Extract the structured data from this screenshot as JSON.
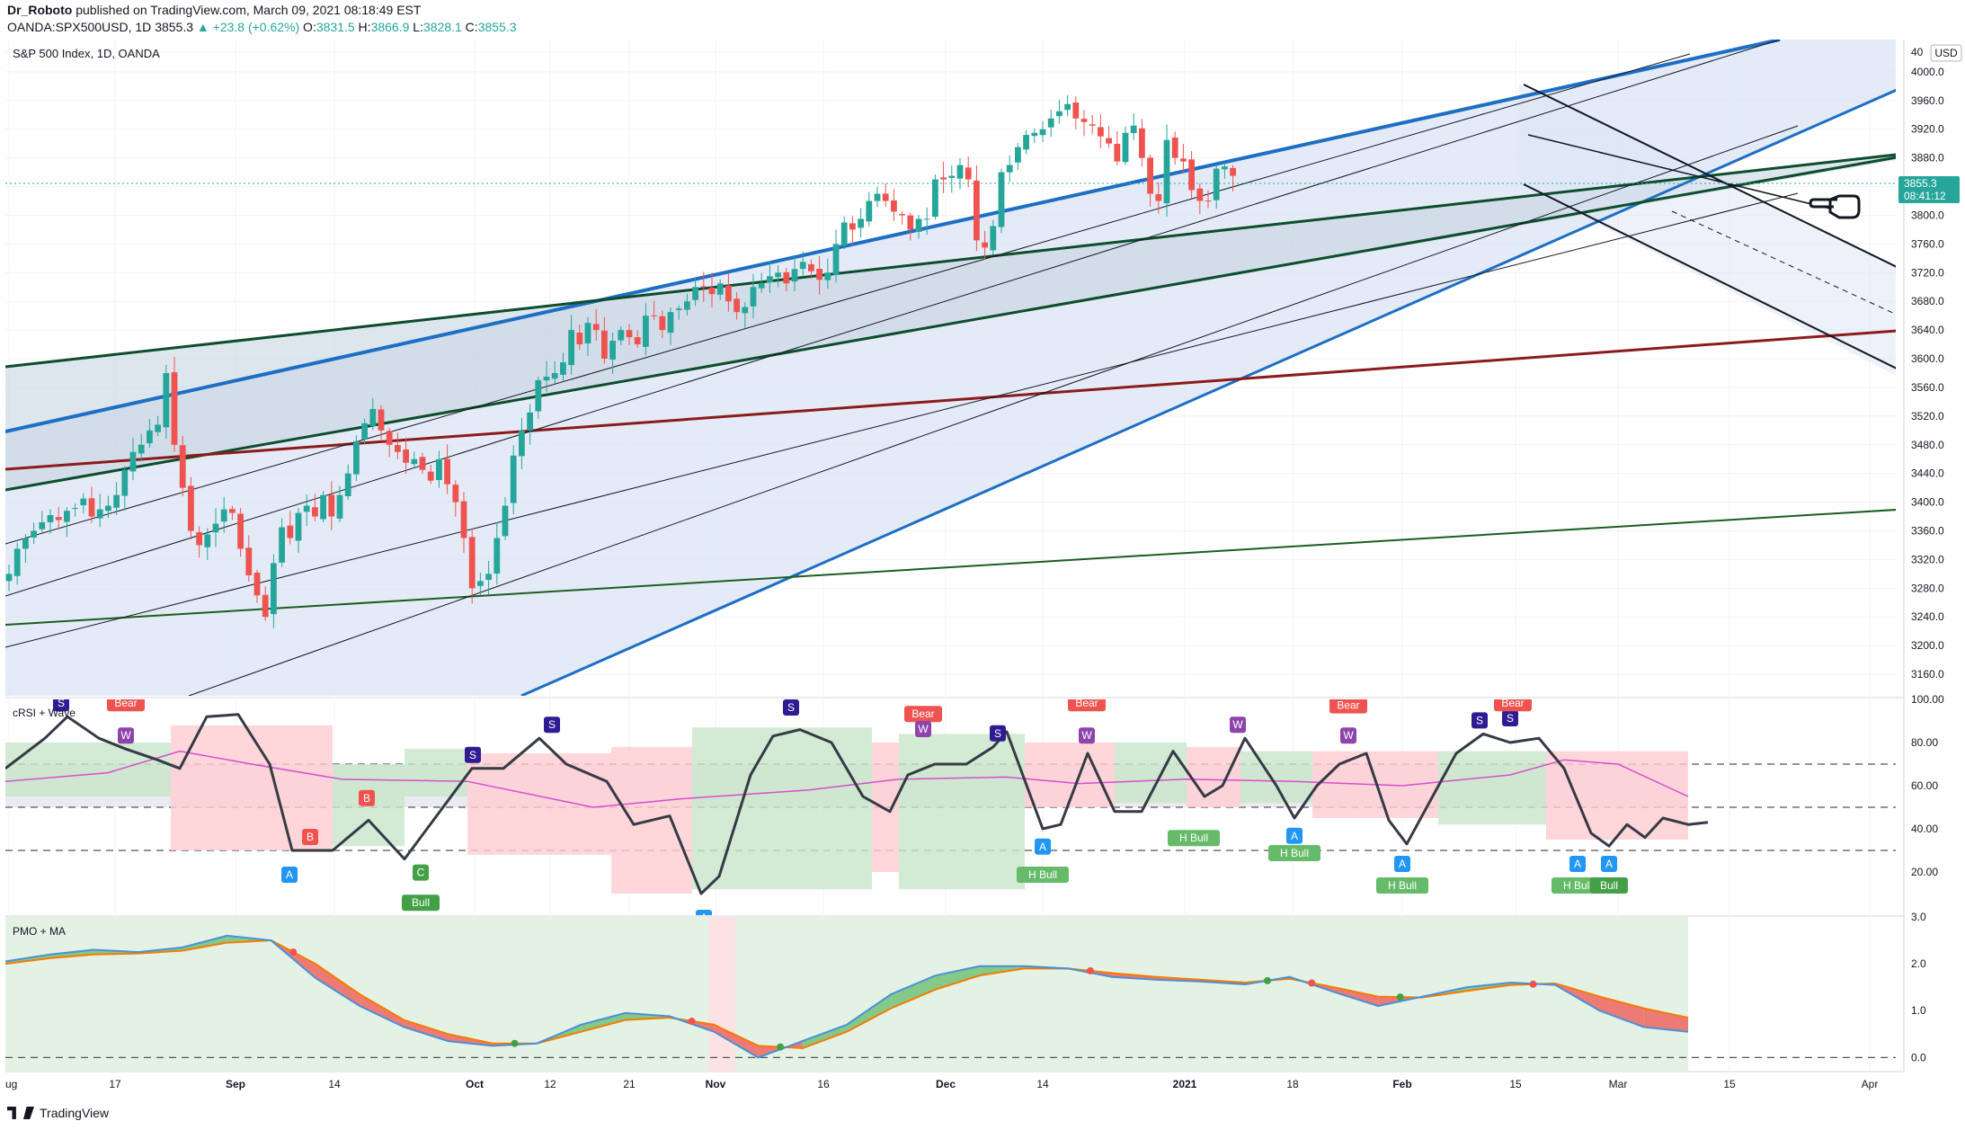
{
  "header": {
    "author": "Dr_Roboto",
    "published_text": "published on TradingView.com, March 09, 2021 08:18:49 EST",
    "symbol": "OANDA:SPX500USD, 1D",
    "price": "3855.3",
    "change": "▲ +23.8 (+0.62%)",
    "ohlc": {
      "O": "3831.5",
      "H": "3866.9",
      "L": "3828.1",
      "C": "3855.3"
    }
  },
  "footer": {
    "brand": "TradingView"
  },
  "chart_data": [
    {
      "type": "candlestick",
      "title": "S&P 500 Index, 1D, OANDA",
      "currency": "USD",
      "ylim": [
        3130,
        4045
      ],
      "y_ticks": [
        "3160.0",
        "3200.0",
        "3240.0",
        "3280.0",
        "3320.0",
        "3360.0",
        "3400.0",
        "3440.0",
        "3480.0",
        "3520.0",
        "3560.0",
        "3600.0",
        "3640.0",
        "3680.0",
        "3720.0",
        "3760.0",
        "3800.0",
        "3840.0",
        "3880.0",
        "3920.0",
        "3960.0",
        "4000.0",
        "40"
      ],
      "x_ticks": [
        "ug",
        "17",
        "Sep",
        "14",
        "Oct",
        "12",
        "21",
        "Nov",
        "16",
        "Dec",
        "14",
        "2021",
        "18",
        "Feb",
        "15",
        "Mar",
        "15",
        "Apr"
      ],
      "last_price": "3855.3",
      "countdown": "08:41:12",
      "closes": [
        3300,
        3335,
        3350,
        3360,
        3372,
        3382,
        3375,
        3388,
        3392,
        3405,
        3380,
        3390,
        3395,
        3410,
        3445,
        3470,
        3480,
        3500,
        3508,
        3580,
        3480,
        3420,
        3360,
        3340,
        3355,
        3370,
        3390,
        3385,
        3335,
        3298,
        3270,
        3240,
        3315,
        3365,
        3350,
        3385,
        3395,
        3380,
        3410,
        3380,
        3410,
        3440,
        3485,
        3510,
        3530,
        3500,
        3480,
        3470,
        3455,
        3460,
        3445,
        3430,
        3460,
        3425,
        3400,
        3350,
        3280,
        3290,
        3300,
        3350,
        3395,
        3465,
        3500,
        3525,
        3570,
        3575,
        3580,
        3595,
        3640,
        3620,
        3650,
        3640,
        3600,
        3625,
        3640,
        3630,
        3620,
        3660,
        3660,
        3640,
        3665,
        3670,
        3680,
        3700,
        3700,
        3690,
        3705,
        3680,
        3665,
        3672,
        3700,
        3705,
        3715,
        3720,
        3705,
        3725,
        3735,
        3722,
        3710,
        3720,
        3760,
        3790,
        3780,
        3795,
        3820,
        3830,
        3820,
        3805,
        3800,
        3780,
        3795,
        3795,
        3850,
        3850,
        3855,
        3870,
        3850,
        3765,
        3755,
        3785,
        3860,
        3870,
        3895,
        3912,
        3915,
        3920,
        3935,
        3945,
        3955,
        3935,
        3930,
        3925,
        3910,
        3900,
        3875,
        3915,
        3925,
        3880,
        3830,
        3820,
        3905,
        3880,
        3875,
        3835,
        3820,
        3820,
        3865,
        3868,
        3855
      ],
      "levels": {
        "horizontal_dotted": 3855.3
      }
    },
    {
      "type": "line",
      "title": "cRSI + Wave",
      "ylim": [
        0,
        100
      ],
      "y_ticks": [
        "20.00",
        "40.00",
        "60.00",
        "80.00",
        "100.00"
      ],
      "dashed_levels": [
        30,
        50,
        70
      ],
      "signals": [
        "S",
        "W",
        "Bear",
        "S",
        "B",
        "B",
        "A",
        "C",
        "Bull",
        "S",
        "S",
        "S",
        "A",
        "Bear",
        "W",
        "S",
        "A",
        "H Bull",
        "Bear",
        "W",
        "H Bull",
        "W",
        "A",
        "H Bull",
        "Bear",
        "W",
        "A",
        "H Bull",
        "S",
        "S",
        "Bear",
        "A",
        "A",
        "H Bull",
        "Bull"
      ]
    },
    {
      "type": "area",
      "title": "PMO + MA",
      "ylim": [
        -0.3,
        3.0
      ],
      "y_ticks": [
        "0.0",
        "1.0",
        "2.0",
        "3.0"
      ],
      "pmo": [
        2.05,
        2.2,
        2.3,
        2.25,
        2.35,
        2.6,
        2.5,
        1.7,
        1.1,
        0.65,
        0.35,
        0.25,
        0.3,
        0.7,
        0.95,
        0.88,
        0.55,
        0.0,
        0.35,
        0.7,
        1.35,
        1.75,
        1.95,
        1.95,
        1.9,
        1.72,
        1.66,
        1.62,
        1.56,
        1.72,
        1.4,
        1.1,
        1.3,
        1.5,
        1.6,
        1.55,
        1.0,
        0.65,
        0.55
      ],
      "ma": [
        2.0,
        2.12,
        2.2,
        2.22,
        2.28,
        2.45,
        2.5,
        2.0,
        1.35,
        0.8,
        0.5,
        0.3,
        0.3,
        0.55,
        0.8,
        0.85,
        0.7,
        0.25,
        0.2,
        0.55,
        1.05,
        1.45,
        1.75,
        1.9,
        1.9,
        1.8,
        1.72,
        1.66,
        1.6,
        1.68,
        1.5,
        1.3,
        1.28,
        1.42,
        1.55,
        1.58,
        1.3,
        1.05,
        0.85
      ]
    }
  ]
}
